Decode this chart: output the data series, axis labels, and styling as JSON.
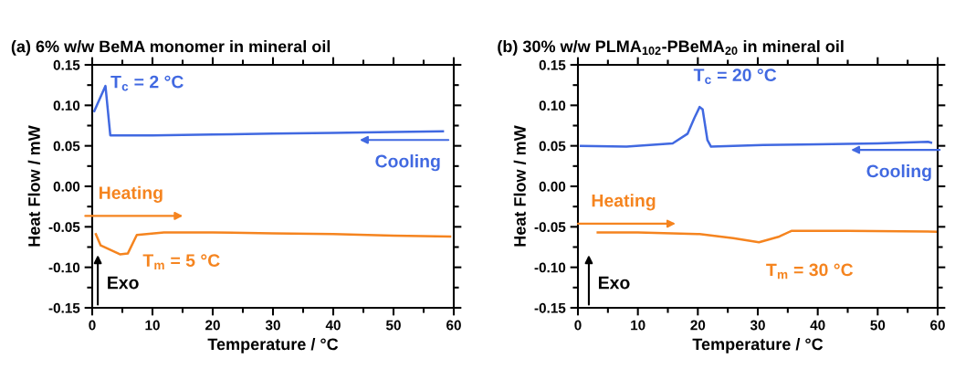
{
  "chart_data": [
    {
      "type": "line",
      "title": "(a) 6% w/w BeMA monomer in mineral oil",
      "xlabel": "Temperature / °C",
      "ylabel": "Heat Flow / mW",
      "xlim": [
        0,
        60
      ],
      "xticks": [
        0,
        10,
        20,
        30,
        40,
        50,
        60
      ],
      "ylim": [
        -0.15,
        0.15
      ],
      "yticks": [
        {
          "value": 0.15,
          "label": "0.15"
        },
        {
          "value": 0.1,
          "label": "0.10"
        },
        {
          "value": 0.05,
          "label": "0.05"
        },
        {
          "value": 0,
          "label": "0.00"
        },
        {
          "value": -0.05,
          "label": "-0.05"
        },
        {
          "value": -0.1,
          "label": "-0.10"
        },
        {
          "value": -0.15,
          "label": "-0.15"
        }
      ],
      "grid": false,
      "legend": false,
      "series": [
        {
          "color": "#4169e1",
          "x": [
            0.35,
            2.2,
            3.0,
            10,
            20,
            30,
            40,
            50,
            58.2
          ],
          "values": [
            0.093,
            0.124,
            0.063,
            0.063,
            0.064,
            0.065,
            0.066,
            0.067,
            0.068
          ]
        },
        {
          "color": "#f5841f",
          "x": [
            0.6,
            1.4,
            4.6,
            5.9,
            7.4,
            11.9,
            20,
            30,
            40,
            50,
            59.4
          ],
          "values": [
            -0.059,
            -0.073,
            -0.084,
            -0.083,
            -0.06,
            -0.057,
            -0.057,
            -0.058,
            -0.059,
            -0.061,
            -0.062
          ]
        }
      ],
      "annotations": [
        {
          "text": "T$_{c}$ = 2 °C",
          "x": 2.2,
          "y": 0.124
        },
        "Cooling",
        "Heating",
        {
          "text": "T$_{m}$ = 5 °C",
          "x": 4.6,
          "y": -0.084
        },
        "Exo"
      ]
    },
    {
      "type": "line",
      "title": "(b) 30% w/w PLMA$_{102}$-PBeMA$_{20}$ in mineral oil",
      "xlabel": "Temperature / °C",
      "ylabel": "Heat Flow / mW",
      "xlim": [
        0,
        60
      ],
      "xticks": [
        0,
        10,
        20,
        30,
        40,
        50,
        60
      ],
      "ylim": [
        -0.15,
        0.15
      ],
      "yticks": [
        {
          "value": 0.15,
          "label": "0.15"
        },
        {
          "value": 0.1,
          "label": "0.10"
        },
        {
          "value": 0.05,
          "label": "0.05"
        },
        {
          "value": 0,
          "label": "0.00"
        },
        {
          "value": -0.05,
          "label": "-0.05"
        },
        {
          "value": -0.1,
          "label": "-0.10"
        },
        {
          "value": -0.15,
          "label": "-0.15"
        }
      ],
      "grid": false,
      "legend": false,
      "series": [
        {
          "color": "#4169e1",
          "x": [
            0.5,
            8.1,
            15.8,
            18.3,
            19.4,
            20.3,
            20.8,
            21.6,
            22.2,
            30.9,
            40,
            50,
            58.4,
            58.9
          ],
          "values": [
            0.05,
            0.049,
            0.053,
            0.065,
            0.084,
            0.098,
            0.095,
            0.057,
            0.049,
            0.051,
            0.052,
            0.053,
            0.055,
            0.054
          ]
        },
        {
          "color": "#f5841f",
          "x": [
            3.3,
            10,
            20.3,
            25.9,
            30.2,
            33.6,
            35.6,
            45,
            59.8
          ],
          "values": [
            -0.057,
            -0.057,
            -0.059,
            -0.064,
            -0.069,
            -0.062,
            -0.055,
            -0.055,
            -0.056
          ]
        }
      ],
      "annotations": [
        {
          "text": "T$_{c}$ = 20 °C",
          "x": 20.3,
          "y": 0.098
        },
        "Cooling",
        "Heating",
        {
          "text": "T$_{m}$ = 30 °C",
          "x": 30.2,
          "y": -0.069
        },
        "Exo"
      ]
    }
  ]
}
